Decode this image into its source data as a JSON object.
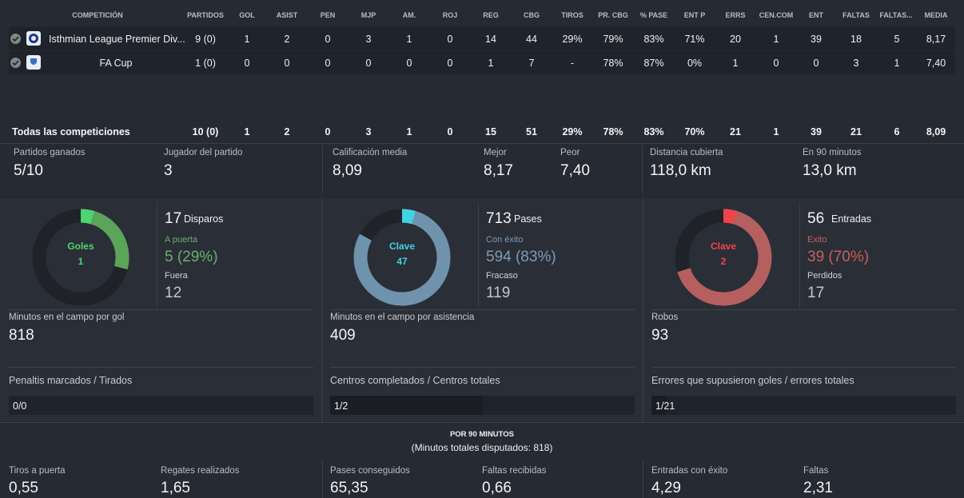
{
  "columns": [
    "COMPETICIÓN",
    "PARTIDOS",
    "GOL",
    "ASIST",
    "PEN",
    "MJP",
    "AM.",
    "ROJ",
    "REG",
    "CBG",
    "TIROS",
    "PR. CBG",
    "% PASE",
    "ENT P",
    "ERRS",
    "CEN.COM",
    "ENT",
    "FALTAS",
    "FALTAS...",
    "MEDIA"
  ],
  "rows": [
    {
      "competition": "Isthmian League Premier Div...",
      "values": [
        "9 (0)",
        "1",
        "2",
        "0",
        "3",
        "1",
        "0",
        "14",
        "44",
        "29%",
        "79%",
        "83%",
        "71%",
        "20",
        "1",
        "39",
        "18",
        "5",
        "8,17"
      ]
    },
    {
      "competition": "FA Cup",
      "values": [
        "1 (0)",
        "0",
        "0",
        "0",
        "0",
        "0",
        "0",
        "1",
        "7",
        "-",
        "78%",
        "87%",
        "0%",
        "1",
        "0",
        "0",
        "3",
        "1",
        "7,40"
      ]
    }
  ],
  "totals": {
    "label": "Todas las competiciones",
    "values": [
      "10 (0)",
      "1",
      "2",
      "0",
      "3",
      "1",
      "0",
      "15",
      "51",
      "29%",
      "78%",
      "83%",
      "70%",
      "21",
      "1",
      "39",
      "21",
      "6",
      "8,09"
    ]
  },
  "summary": [
    {
      "label": "Partidos ganados",
      "value": "5/10"
    },
    {
      "label": "Jugador del partido",
      "value": "3"
    },
    {
      "label": "Calificación media",
      "value": "8,09"
    },
    {
      "label": "Mejor",
      "value": "8,17"
    },
    {
      "label": "Peor",
      "value": "7,40"
    },
    {
      "label": "Distancia cubierta",
      "value": "118,0 km"
    },
    {
      "label": "En 90 minutos",
      "value": "13,0 km"
    }
  ],
  "panels": [
    {
      "donut_label": "Goles",
      "donut_value": "1",
      "color": "#4fd46f",
      "ring_color": "#5aa55a",
      "fraction": 0.29,
      "main_value": "17",
      "main_label": "Disparos",
      "sub_label": "A puerta",
      "sub_value": "5 (29%)",
      "sub_color": "#6ab06a",
      "fail_label": "Fuera",
      "fail_value": "12",
      "metric_label": "Minutos en el campo por gol",
      "metric_value": "818",
      "ratio_label": "Penaltis marcados / Tirados",
      "ratio_value": "0/0",
      "ratio_fill": 0
    },
    {
      "donut_label": "Clave",
      "donut_value": "47",
      "color": "#41d2e2",
      "ring_color": "#6f93ad",
      "fraction": 0.83,
      "main_value": "713",
      "main_label": "Pases",
      "sub_label": "Con éxito",
      "sub_value": "594 (83%)",
      "sub_color": "#7f9bb5",
      "fail_label": "Fracaso",
      "fail_value": "119",
      "metric_label": "Minutos en el campo por asistencia",
      "metric_value": "409",
      "ratio_label": "Centros completados / Centros totales",
      "ratio_value": "1/2",
      "ratio_fill": 0.5
    },
    {
      "donut_label": "Clave",
      "donut_value": "2",
      "color": "#f0444c",
      "ring_color": "#b5605f",
      "fraction": 0.7,
      "main_value": "56",
      "main_label": "Entradas",
      "sub_label": "Exito",
      "sub_value": "39 (70%)",
      "sub_color": "#c4605e",
      "fail_label": "Perdidos",
      "fail_value": "17",
      "metric_label": "Robos",
      "metric_value": "93",
      "ratio_label": "Errores que supusieron goles / errores totales",
      "ratio_value": "1/21",
      "ratio_fill": 0.05
    }
  ],
  "per90": {
    "title": "POR 90 MINUTOS",
    "subtitle": "(Minutos totales disputados: 818)",
    "items": [
      {
        "label": "Tiros a puerta",
        "value": "0,55"
      },
      {
        "label": "Regates realizados",
        "value": "1,65"
      },
      {
        "label": "Pases conseguidos",
        "value": "65,35"
      },
      {
        "label": "Faltas recibidas",
        "value": "0,66"
      },
      {
        "label": "Entradas con éxito",
        "value": "4,29"
      },
      {
        "label": "Faltas",
        "value": "2,31"
      }
    ]
  }
}
